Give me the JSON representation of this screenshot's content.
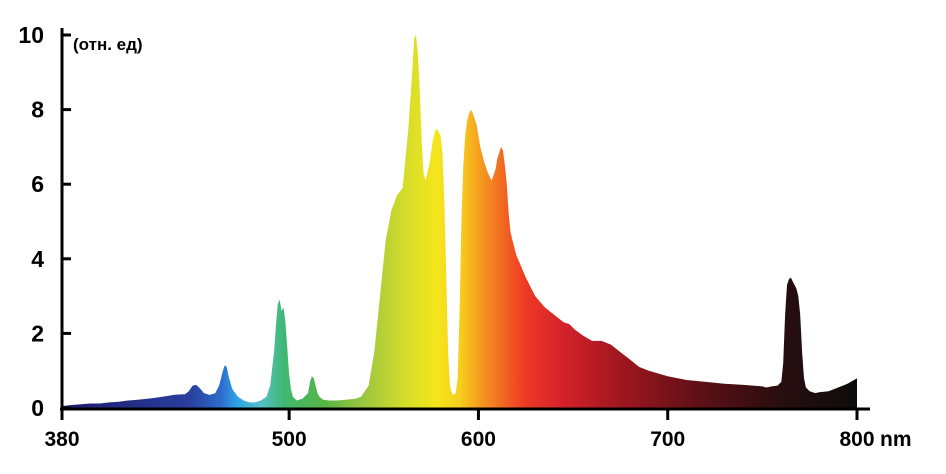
{
  "chart_data": {
    "type": "area",
    "title": "",
    "ylabel": "(отн. ед)",
    "xlabel": "nm",
    "xlim": [
      380,
      800
    ],
    "ylim": [
      0,
      10
    ],
    "x_ticks": [
      {
        "value": 380,
        "label": "380"
      },
      {
        "value": 500,
        "label": "500"
      },
      {
        "value": 600,
        "label": "600"
      },
      {
        "value": 700,
        "label": "700"
      },
      {
        "value": 800,
        "label": "800"
      }
    ],
    "y_ticks": [
      {
        "value": 0,
        "label": "0"
      },
      {
        "value": 2,
        "label": "2"
      },
      {
        "value": 4,
        "label": "4"
      },
      {
        "value": 6,
        "label": "6"
      },
      {
        "value": 8,
        "label": "8"
      },
      {
        "value": 10,
        "label": "10"
      }
    ],
    "series": [
      {
        "x": [
          380,
          385,
          390,
          395,
          400,
          405,
          410,
          415,
          420,
          425,
          430,
          435,
          440,
          445,
          447,
          449,
          451,
          453,
          455,
          458,
          461,
          463,
          464,
          465,
          466,
          467,
          468,
          470,
          473,
          476,
          479,
          482,
          485,
          488,
          490,
          492,
          493,
          494,
          495,
          496,
          497,
          498,
          499,
          500,
          501,
          502,
          504,
          507,
          510,
          511,
          512,
          513,
          514,
          515,
          516,
          518,
          521,
          525,
          530,
          535,
          538,
          542,
          545,
          548,
          551,
          554,
          557,
          560,
          563,
          565,
          566,
          567,
          568,
          569,
          570,
          571,
          572,
          574,
          576,
          577,
          578,
          580,
          581,
          582,
          583,
          584,
          585,
          586,
          587,
          588,
          589,
          590,
          591,
          592,
          593,
          594,
          595,
          596,
          597,
          599,
          600,
          601,
          603,
          605,
          607,
          609,
          610,
          612,
          613,
          614,
          615,
          616,
          617,
          618,
          620,
          625,
          630,
          635,
          640,
          645,
          648,
          651,
          655,
          660,
          665,
          670,
          675,
          680,
          685,
          690,
          700,
          710,
          720,
          730,
          740,
          745,
          750,
          752,
          755,
          758,
          760,
          761,
          762,
          763,
          764,
          765,
          766,
          767,
          768,
          769,
          770,
          771,
          772,
          773,
          775,
          778,
          780,
          785,
          790,
          795,
          800
        ],
        "y": [
          0.05,
          0.08,
          0.1,
          0.12,
          0.12,
          0.15,
          0.17,
          0.2,
          0.22,
          0.25,
          0.28,
          0.32,
          0.36,
          0.37,
          0.45,
          0.6,
          0.62,
          0.52,
          0.4,
          0.35,
          0.4,
          0.6,
          0.8,
          1.0,
          1.15,
          1.1,
          0.85,
          0.5,
          0.3,
          0.2,
          0.15,
          0.15,
          0.2,
          0.3,
          0.6,
          1.5,
          2.2,
          2.8,
          2.9,
          2.6,
          2.7,
          2.3,
          1.6,
          0.9,
          0.5,
          0.3,
          0.2,
          0.25,
          0.4,
          0.7,
          0.85,
          0.8,
          0.6,
          0.4,
          0.3,
          0.22,
          0.2,
          0.2,
          0.22,
          0.25,
          0.3,
          0.6,
          1.5,
          3.0,
          4.5,
          5.3,
          5.7,
          5.9,
          7.5,
          9.0,
          9.9,
          10.0,
          9.5,
          8.5,
          7.2,
          6.3,
          6.1,
          6.5,
          7.2,
          7.4,
          7.5,
          7.3,
          6.8,
          5.5,
          3.5,
          1.5,
          0.6,
          0.4,
          0.35,
          0.4,
          0.8,
          2.5,
          5.0,
          6.5,
          7.3,
          7.7,
          7.9,
          8.0,
          7.9,
          7.6,
          7.3,
          7.0,
          6.6,
          6.3,
          6.1,
          6.4,
          6.7,
          7.0,
          6.9,
          6.5,
          6.0,
          5.2,
          4.7,
          4.5,
          4.1,
          3.5,
          3.0,
          2.7,
          2.5,
          2.3,
          2.25,
          2.1,
          1.95,
          1.8,
          1.8,
          1.7,
          1.5,
          1.3,
          1.1,
          1.0,
          0.85,
          0.75,
          0.7,
          0.65,
          0.62,
          0.6,
          0.58,
          0.55,
          0.58,
          0.6,
          0.7,
          1.2,
          2.5,
          3.3,
          3.45,
          3.5,
          3.4,
          3.3,
          3.2,
          3.0,
          2.5,
          1.5,
          0.8,
          0.55,
          0.45,
          0.4,
          0.42,
          0.45,
          0.55,
          0.65,
          0.8
        ]
      }
    ],
    "grid": false,
    "legend": "none",
    "fill": "visible-spectrum gradient (violet-blue → cyan → green → yellow → orange → red → dark red → near black)"
  }
}
